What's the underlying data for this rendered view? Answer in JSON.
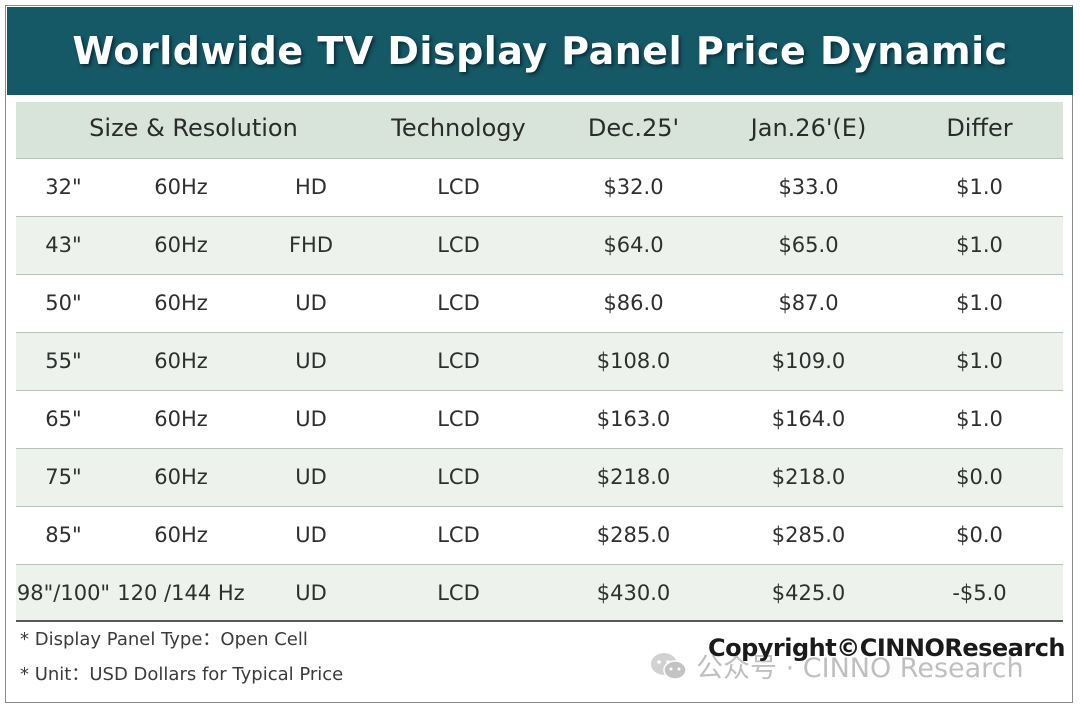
{
  "title": "Worldwide TV Display Panel Price Dynamic",
  "headers": {
    "size_resolution": "Size & Resolution",
    "technology": "Technology",
    "dec": "Dec.25'",
    "jan": "Jan.26'(E)",
    "differ": "Differ"
  },
  "rows": [
    {
      "size": "32\"",
      "rate": "60Hz",
      "res": "HD",
      "tech": "LCD",
      "dec": "$32.0",
      "jan": "$33.0",
      "diff": "$1.0"
    },
    {
      "size": "43\"",
      "rate": "60Hz",
      "res": "FHD",
      "tech": "LCD",
      "dec": "$64.0",
      "jan": "$65.0",
      "diff": "$1.0"
    },
    {
      "size": "50\"",
      "rate": "60Hz",
      "res": "UD",
      "tech": "LCD",
      "dec": "$86.0",
      "jan": "$87.0",
      "diff": "$1.0"
    },
    {
      "size": "55\"",
      "rate": "60Hz",
      "res": "UD",
      "tech": "LCD",
      "dec": "$108.0",
      "jan": "$109.0",
      "diff": "$1.0"
    },
    {
      "size": "65\"",
      "rate": "60Hz",
      "res": "UD",
      "tech": "LCD",
      "dec": "$163.0",
      "jan": "$164.0",
      "diff": "$1.0"
    },
    {
      "size": "75\"",
      "rate": "60Hz",
      "res": "UD",
      "tech": "LCD",
      "dec": "$218.0",
      "jan": "$218.0",
      "diff": "$0.0"
    },
    {
      "size": "85\"",
      "rate": "60Hz",
      "res": "UD",
      "tech": "LCD",
      "dec": "$285.0",
      "jan": "$285.0",
      "diff": "$0.0"
    },
    {
      "size": "98\"/100\"",
      "rate": "120 /144 Hz",
      "res": "UD",
      "tech": "LCD",
      "dec": "$430.0",
      "jan": "$425.0",
      "diff": "-$5.0"
    }
  ],
  "notes": [
    "* Display Panel Type：Open Cell",
    "* Unit：USD Dollars for Typical Price"
  ],
  "copyright": "Copyright©CINNOResearch",
  "watermark": "公众号 · CINNO Research",
  "colors": {
    "banner": "#155866",
    "header_bg": "#d8e4d9",
    "alt_row": "#edf2ed"
  }
}
